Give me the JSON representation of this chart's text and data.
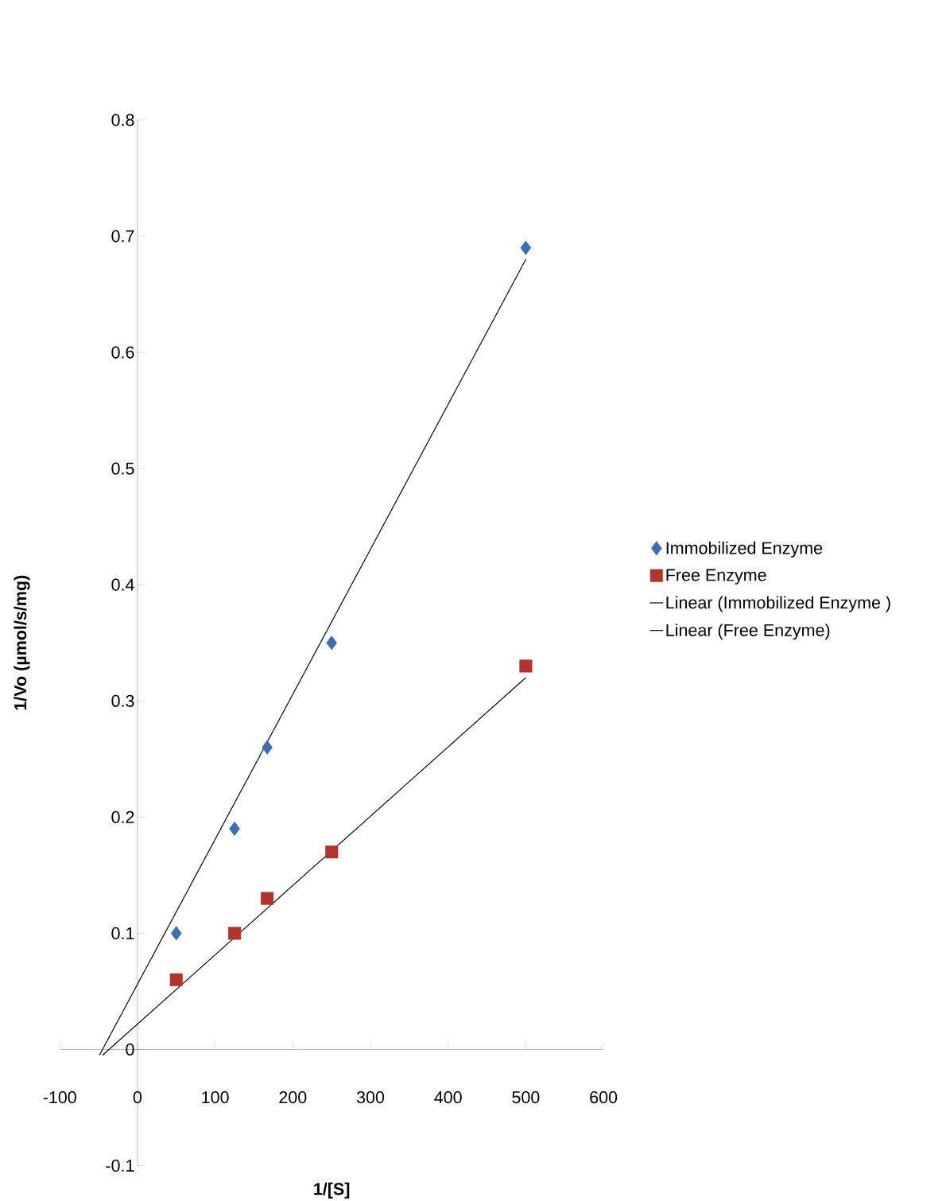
{
  "chart_data": {
    "type": "scatter",
    "xlabel": "1/[S]",
    "ylabel": "1/Vo (µmol/s/mg)",
    "xlim": [
      -100,
      600
    ],
    "ylim": [
      -0.1,
      0.8
    ],
    "xticks": [
      -100,
      0,
      100,
      200,
      300,
      400,
      500,
      600
    ],
    "yticks": [
      -0.1,
      0,
      0.1,
      0.2,
      0.3,
      0.4,
      0.5,
      0.6,
      0.7,
      0.8
    ],
    "grid": false,
    "legend": "right",
    "series": [
      {
        "name": "Immobilized Enzyme",
        "marker": "diamond",
        "color": "#3c6db4",
        "x": [
          50,
          125,
          167,
          250,
          500
        ],
        "values": [
          0.1,
          0.19,
          0.26,
          0.35,
          0.69
        ]
      },
      {
        "name": "Free Enzyme",
        "marker": "square",
        "color": "#b0342c",
        "x": [
          50,
          125,
          167,
          250,
          500
        ],
        "values": [
          0.06,
          0.1,
          0.13,
          0.17,
          0.33
        ]
      },
      {
        "name": "Linear (Immobilized Enzyme )",
        "type": "line",
        "marker": "none",
        "line_style": "solid",
        "color": "#000000",
        "x": [
          -49,
          500
        ],
        "values": [
          -0.005,
          0.68
        ]
      },
      {
        "name": "Linear (Free Enzyme)",
        "type": "line",
        "marker": "none",
        "line_style": "solid",
        "color": "#000000",
        "x": [
          -45,
          500
        ],
        "values": [
          -0.005,
          0.32
        ]
      }
    ]
  }
}
